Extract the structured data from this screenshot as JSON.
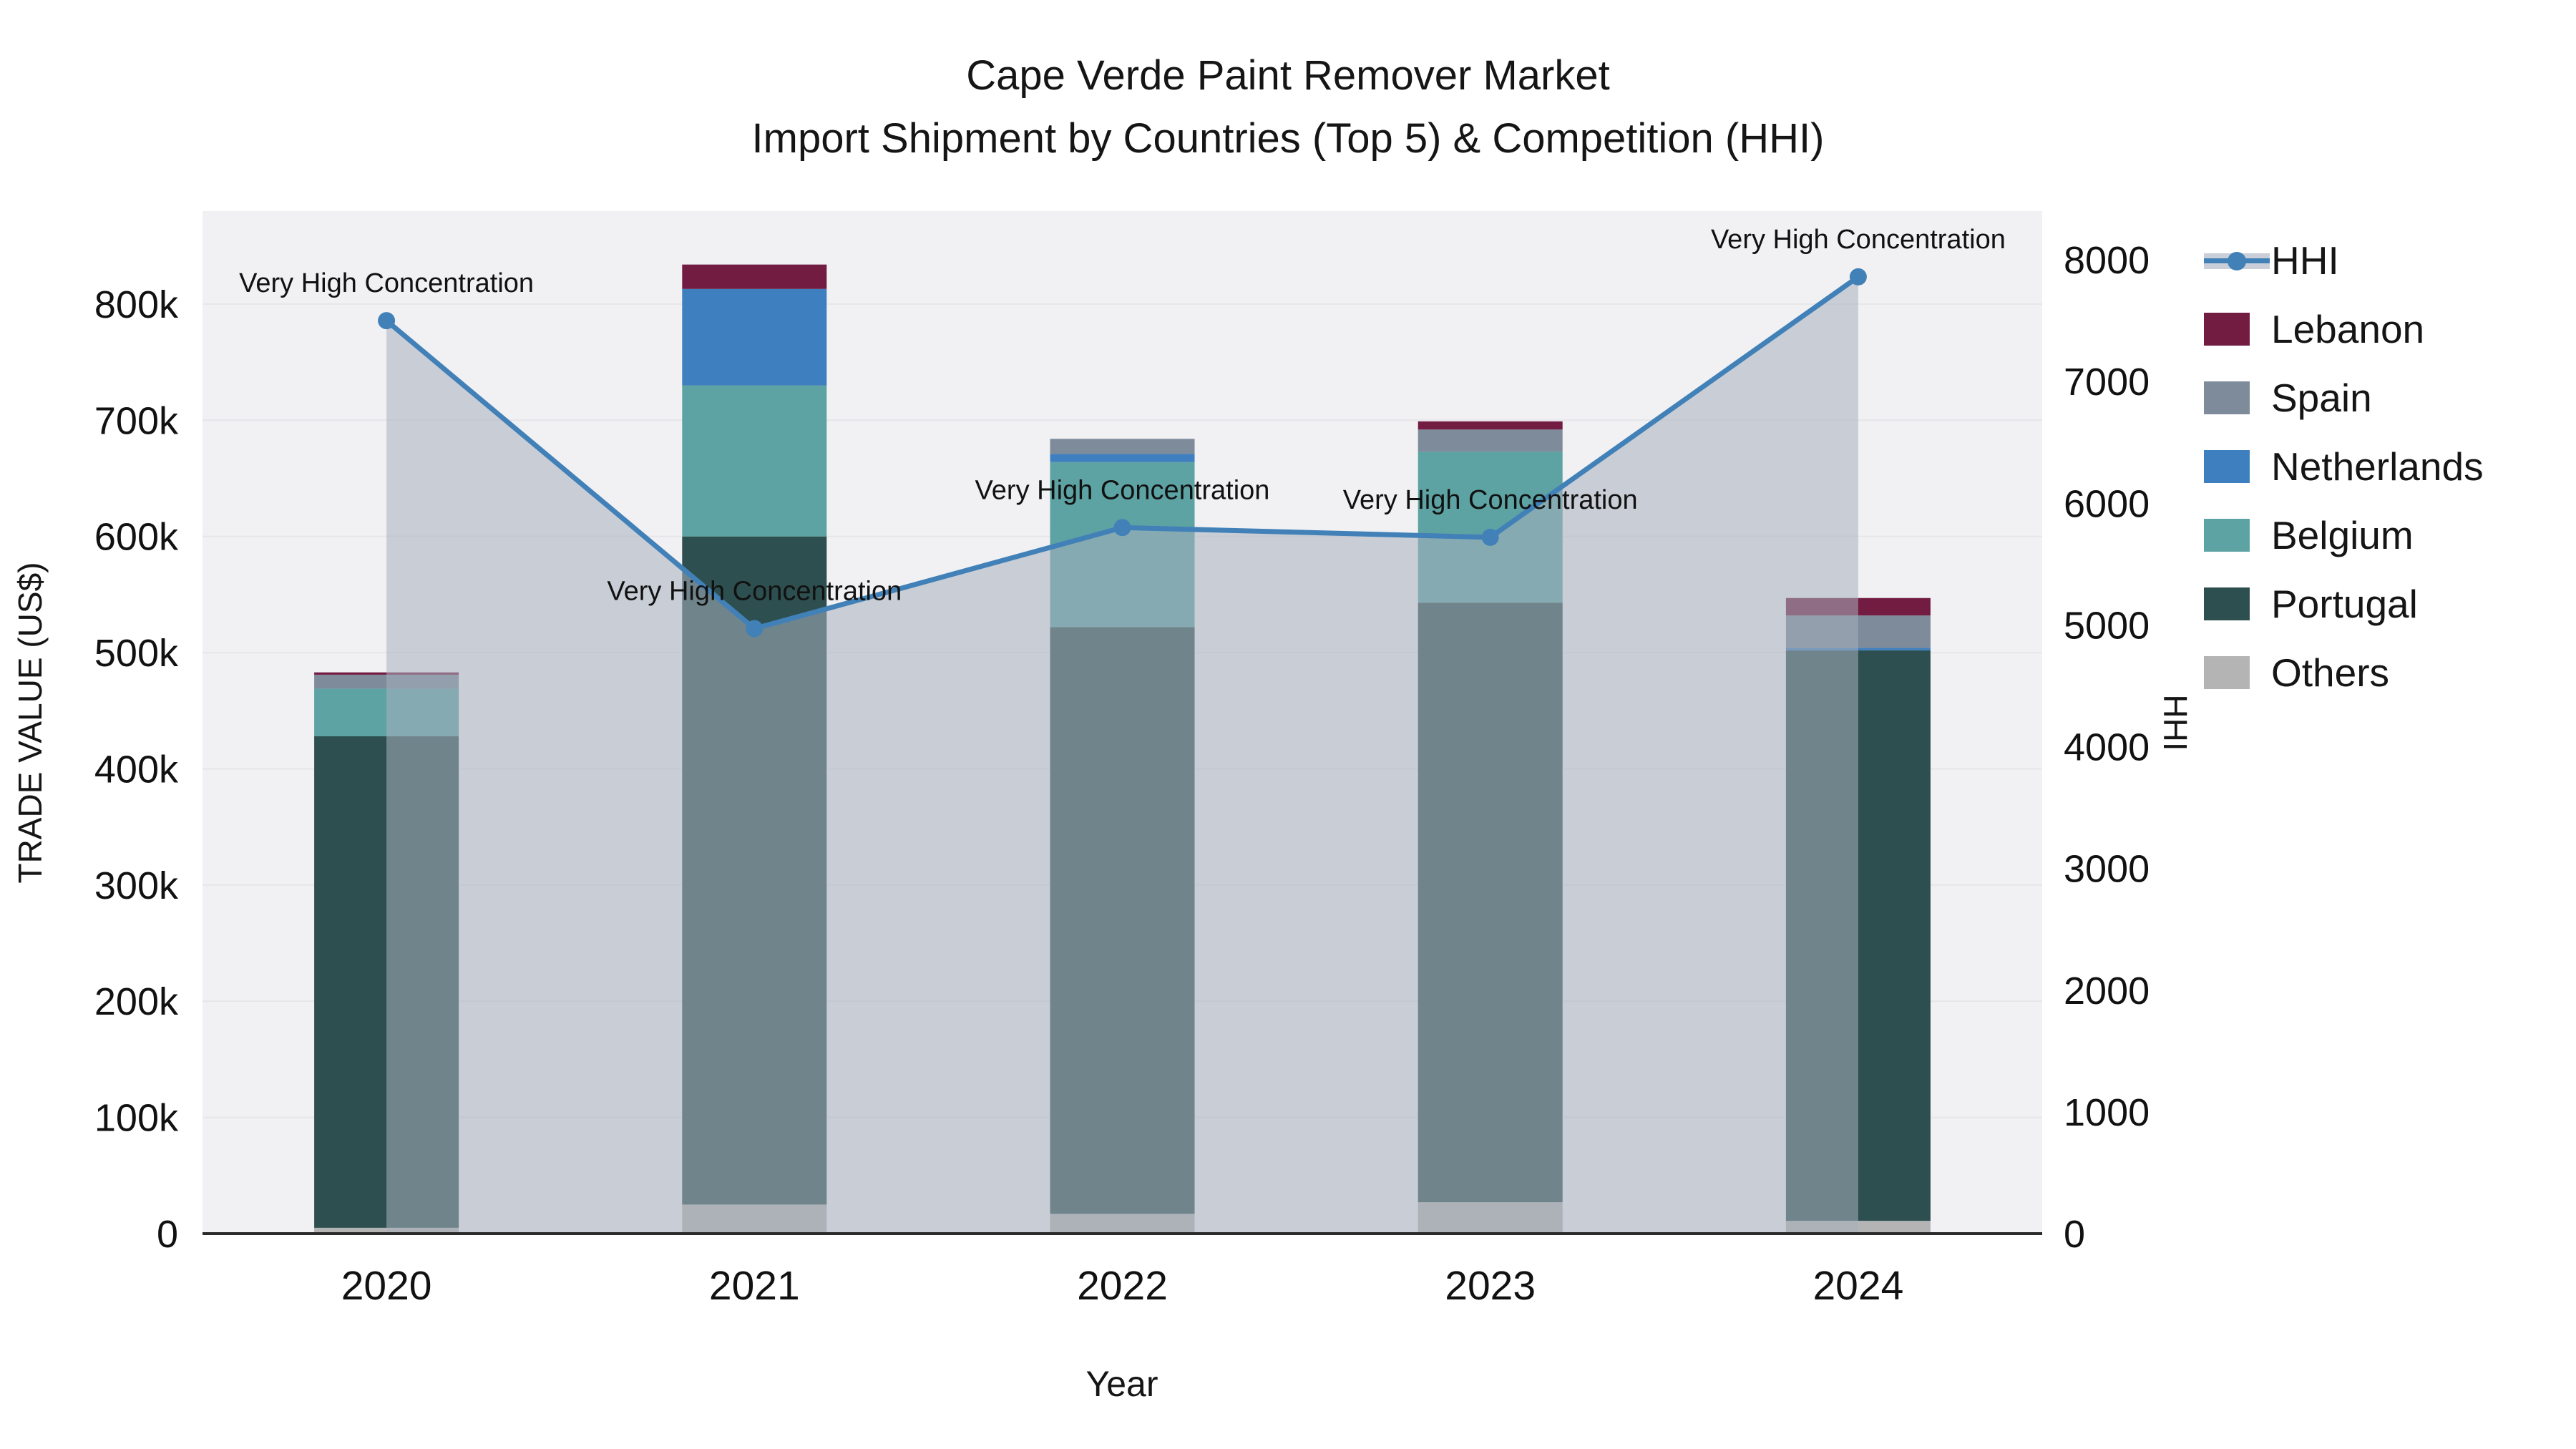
{
  "title": {
    "line1": "Cape Verde Paint Remover Market",
    "line2": "Import Shipment by Countries (Top 5) & Competition (HHI)"
  },
  "chart_data": {
    "type": "bar+line",
    "categories": [
      "2020",
      "2021",
      "2022",
      "2023",
      "2024"
    ],
    "bar_values_unit": "thousand US$",
    "series": [
      {
        "name": "Others",
        "color": "#B4B4B4",
        "values": [
          5,
          25,
          17,
          27,
          11
        ]
      },
      {
        "name": "Portugal",
        "color": "#2E4F50",
        "values": [
          423,
          575,
          505,
          516,
          491
        ]
      },
      {
        "name": "Belgium",
        "color": "#5EA3A3",
        "values": [
          41,
          130,
          142,
          130,
          0
        ]
      },
      {
        "name": "Netherlands",
        "color": "#3E7FBF",
        "values": [
          0,
          83,
          7,
          0,
          2
        ]
      },
      {
        "name": "Spain",
        "color": "#7D8B9B",
        "values": [
          12,
          0,
          13,
          19,
          28
        ]
      },
      {
        "name": "Lebanon",
        "color": "#721C41",
        "values": [
          2,
          21,
          0,
          7,
          15
        ]
      }
    ],
    "totals": [
      483,
      834,
      684,
      699,
      547
    ],
    "line": {
      "name": "HHI",
      "color": "#4181B8",
      "fill_color": "rgba(167,176,190,0.55)",
      "values": [
        7500,
        4970,
        5800,
        5720,
        7860
      ]
    },
    "annotations": [
      {
        "text": "Very High Concentration",
        "x": "2020",
        "y": 7500
      },
      {
        "text": "Very High Concentration",
        "x": "2021",
        "y": 4970
      },
      {
        "text": "Very High Concentration",
        "x": "2022",
        "y": 5800
      },
      {
        "text": "Very High Concentration",
        "x": "2023",
        "y": 5720
      },
      {
        "text": "Very High Concentration",
        "x": "2024",
        "y": 7860
      }
    ],
    "axes": {
      "x": {
        "title": "Year"
      },
      "y_left": {
        "title": "TRADE VALUE (US$)",
        "max": 880,
        "tick_values": [
          0,
          100,
          200,
          300,
          400,
          500,
          600,
          700,
          800
        ],
        "tick_labels": [
          "0",
          "100k",
          "200k",
          "300k",
          "400k",
          "500k",
          "600k",
          "700k",
          "800k"
        ]
      },
      "y_right": {
        "title": "HHI",
        "max": 8400,
        "tick_values": [
          0,
          1000,
          2000,
          3000,
          4000,
          5000,
          6000,
          7000,
          8000
        ],
        "tick_labels": [
          "0",
          "1000",
          "2000",
          "3000",
          "4000",
          "5000",
          "6000",
          "7000",
          "8000"
        ]
      }
    },
    "legend": [
      "HHI",
      "Lebanon",
      "Spain",
      "Netherlands",
      "Belgium",
      "Portugal",
      "Others"
    ],
    "layout": {
      "plot_bg": "#F1F1F3",
      "grid_color": "#E6E6E9",
      "axis_line_color": "#2B2B2B",
      "grid_on": true,
      "legend_position": "right"
    }
  }
}
